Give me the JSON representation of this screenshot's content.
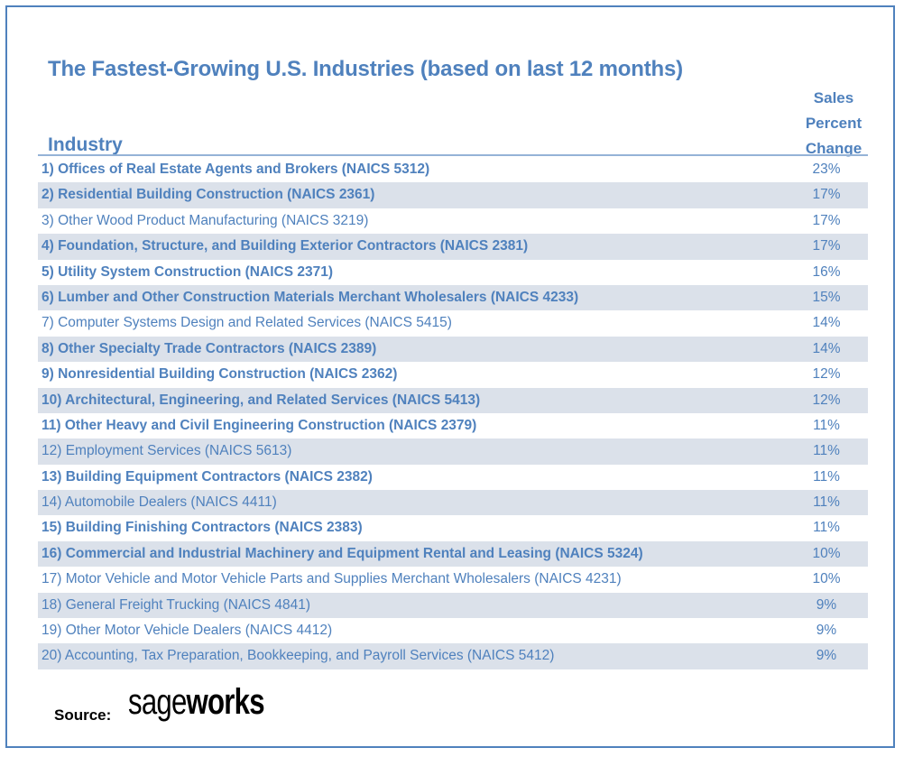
{
  "title": "The Fastest-Growing U.S. Industries (based on last 12 months)",
  "columns": {
    "industry": "Industry",
    "sales_lines": [
      "Sales",
      "Percent",
      "Change"
    ]
  },
  "source_label": "Source:",
  "logo": {
    "part1": "sage",
    "part2": "works"
  },
  "chart_data": {
    "type": "table",
    "title": "The Fastest-Growing U.S. Industries (based on last 12 months)",
    "headers": [
      "Industry",
      "Sales Percent Change"
    ],
    "rows": [
      {
        "industry": "1) Offices of Real Estate Agents and Brokers (NAICS 5312)",
        "change": "23%",
        "bold": true
      },
      {
        "industry": "2) Residential Building Construction (NAICS 2361)",
        "change": "17%",
        "bold": true
      },
      {
        "industry": "3) Other Wood Product Manufacturing (NAICS 3219)",
        "change": "17%",
        "bold": false
      },
      {
        "industry": "4) Foundation, Structure, and Building Exterior Contractors (NAICS 2381)",
        "change": "17%",
        "bold": true
      },
      {
        "industry": "5) Utility System Construction (NAICS 2371)",
        "change": "16%",
        "bold": true
      },
      {
        "industry": "6) Lumber and Other Construction Materials Merchant Wholesalers (NAICS 4233)",
        "change": "15%",
        "bold": true
      },
      {
        "industry": "7) Computer Systems Design and Related Services (NAICS 5415)",
        "change": "14%",
        "bold": false
      },
      {
        "industry": "8) Other Specialty Trade Contractors (NAICS 2389)",
        "change": "14%",
        "bold": true
      },
      {
        "industry": "9) Nonresidential Building Construction (NAICS 2362)",
        "change": "12%",
        "bold": true
      },
      {
        "industry": "10) Architectural, Engineering, and Related Services (NAICS 5413)",
        "change": "12%",
        "bold": true
      },
      {
        "industry": "11) Other Heavy and Civil Engineering Construction (NAICS 2379)",
        "change": "11%",
        "bold": true
      },
      {
        "industry": "12) Employment Services (NAICS 5613)",
        "change": "11%",
        "bold": false
      },
      {
        "industry": "13) Building Equipment Contractors (NAICS 2382)",
        "change": "11%",
        "bold": true
      },
      {
        "industry": "14) Automobile Dealers (NAICS 4411)",
        "change": "11%",
        "bold": false
      },
      {
        "industry": "15) Building Finishing Contractors (NAICS 2383)",
        "change": "11%",
        "bold": true
      },
      {
        "industry": "16) Commercial and Industrial Machinery and Equipment Rental and Leasing (NAICS 5324)",
        "change": "10%",
        "bold": true
      },
      {
        "industry": "17) Motor Vehicle and Motor Vehicle Parts and Supplies Merchant Wholesalers (NAICS 4231)",
        "change": "10%",
        "bold": false
      },
      {
        "industry": "18) General Freight Trucking (NAICS 4841)",
        "change": "9%",
        "bold": false
      },
      {
        "industry": "19) Other Motor Vehicle Dealers (NAICS 4412)",
        "change": "9%",
        "bold": false
      },
      {
        "industry": "20) Accounting, Tax Preparation, Bookkeeping, and Payroll Services (NAICS 5412)",
        "change": "9%",
        "bold": false
      }
    ]
  },
  "colors": {
    "text": "#4f81bd",
    "border": "#4f81bd",
    "shade": "#dbe1ea"
  }
}
